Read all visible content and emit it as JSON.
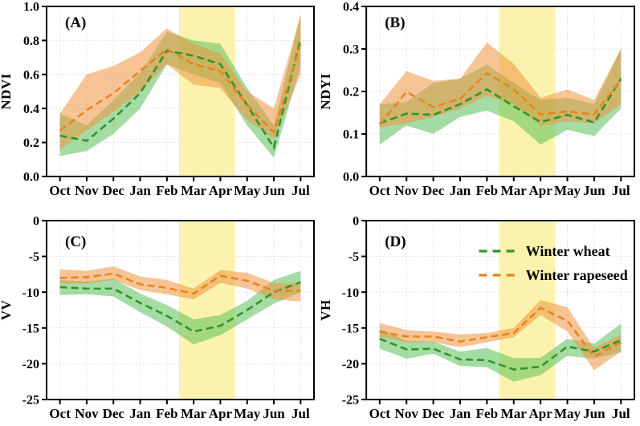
{
  "page": {
    "background": "#ffffff"
  },
  "styles": {
    "axis_color": "#000000",
    "grid_color": "#d9d9d9",
    "highlight_color": "#fbf2a4",
    "wheat_line_color": "#2e9628",
    "wheat_band_color": "#5bbf5b",
    "rapeseed_line_color": "#e8851f",
    "rapeseed_band_color": "#f09440"
  },
  "legend": {
    "position": "top-right-of-panel-D",
    "items": [
      {
        "label": "Winter wheat",
        "color": "#2e9628",
        "style": "dashed"
      },
      {
        "label": "Winter rapeseed",
        "color": "#e8851f",
        "style": "dashed"
      }
    ]
  },
  "months": [
    "Oct",
    "Nov",
    "Dec",
    "Jan",
    "Feb",
    "Mar",
    "Apr",
    "May",
    "Jun",
    "Jul"
  ],
  "chart_data": [
    {
      "type": "line",
      "panel_label": "(A)",
      "ylabel": "NDVI",
      "ylim": [
        0,
        1.0
      ],
      "yticks": [
        0,
        0.2,
        0.4,
        0.6,
        0.8,
        1.0
      ],
      "ytick_labels": [
        "0.0",
        "0.2",
        "0.4",
        "0.6",
        "0.8",
        "1.0"
      ],
      "categories": [
        "Oct",
        "Nov",
        "Dec",
        "Jan",
        "Feb",
        "Mar",
        "Apr",
        "May",
        "Jun",
        "Jul"
      ],
      "grid": true,
      "highlight_span_index": [
        4.45,
        6.55
      ],
      "legend_show": false,
      "series": [
        {
          "name": "Winter wheat",
          "color": "#2e9628",
          "band_color": "#5bbf5b",
          "values": [
            0.24,
            0.21,
            0.34,
            0.49,
            0.74,
            0.71,
            0.66,
            0.42,
            0.17,
            0.81
          ],
          "band_low": [
            0.12,
            0.15,
            0.25,
            0.4,
            0.66,
            0.6,
            0.55,
            0.3,
            0.11,
            0.65
          ],
          "band_high": [
            0.37,
            0.3,
            0.45,
            0.61,
            0.85,
            0.8,
            0.78,
            0.52,
            0.3,
            0.95
          ]
        },
        {
          "name": "Winter rapeseed",
          "color": "#e8851f",
          "band_color": "#f09440",
          "values": [
            0.27,
            0.39,
            0.49,
            0.62,
            0.75,
            0.66,
            0.62,
            0.42,
            0.26,
            0.78
          ],
          "band_low": [
            0.16,
            0.27,
            0.38,
            0.5,
            0.66,
            0.54,
            0.52,
            0.33,
            0.22,
            0.6
          ],
          "band_high": [
            0.37,
            0.6,
            0.65,
            0.73,
            0.87,
            0.78,
            0.72,
            0.5,
            0.4,
            0.95
          ]
        }
      ]
    },
    {
      "type": "line",
      "panel_label": "(B)",
      "ylabel": "NDYI",
      "ylim": [
        0,
        0.4
      ],
      "yticks": [
        0,
        0.1,
        0.2,
        0.3,
        0.4
      ],
      "ytick_labels": [
        "0.0",
        "0.1",
        "0.2",
        "0.3",
        "0.4"
      ],
      "categories": [
        "Oct",
        "Nov",
        "Dec",
        "Jan",
        "Feb",
        "Mar",
        "Apr",
        "May",
        "Jun",
        "Jul"
      ],
      "grid": true,
      "highlight_span_index": [
        4.45,
        6.55
      ],
      "legend_show": false,
      "series": [
        {
          "name": "Winter wheat",
          "color": "#2e9628",
          "band_color": "#5bbf5b",
          "values": [
            0.125,
            0.148,
            0.145,
            0.17,
            0.205,
            0.165,
            0.128,
            0.145,
            0.127,
            0.23
          ],
          "band_low": [
            0.075,
            0.12,
            0.1,
            0.14,
            0.155,
            0.13,
            0.075,
            0.11,
            0.095,
            0.16
          ],
          "band_high": [
            0.17,
            0.175,
            0.22,
            0.23,
            0.263,
            0.22,
            0.18,
            0.185,
            0.17,
            0.3
          ]
        },
        {
          "name": "Winter rapeseed",
          "color": "#e8851f",
          "band_color": "#f09440",
          "values": [
            0.122,
            0.199,
            0.163,
            0.183,
            0.243,
            0.205,
            0.146,
            0.153,
            0.146,
            0.228
          ],
          "band_low": [
            0.115,
            0.125,
            0.14,
            0.16,
            0.19,
            0.17,
            0.12,
            0.13,
            0.125,
            0.17
          ],
          "band_high": [
            0.17,
            0.248,
            0.225,
            0.23,
            0.315,
            0.265,
            0.185,
            0.205,
            0.18,
            0.3
          ]
        }
      ]
    },
    {
      "type": "line",
      "panel_label": "(C)",
      "ylabel": "VV",
      "ylim": [
        -25,
        0
      ],
      "yticks": [
        -25,
        -20,
        -15,
        -10,
        -5,
        0
      ],
      "ytick_labels": [
        "-25",
        "-20",
        "-15",
        "-10",
        "-5",
        "0"
      ],
      "categories": [
        "Oct",
        "Nov",
        "Dec",
        "Jan",
        "Feb",
        "Mar",
        "Apr",
        "May",
        "Jun",
        "Jul"
      ],
      "grid": true,
      "highlight_span_index": [
        4.45,
        6.55
      ],
      "legend_show": false,
      "series": [
        {
          "name": "Winter wheat",
          "color": "#2e9628",
          "band_color": "#5bbf5b",
          "values": [
            -9.3,
            -9.5,
            -9.5,
            -11.5,
            -13.3,
            -15.5,
            -14.7,
            -12.5,
            -10.0,
            -8.6
          ],
          "band_low": [
            -10.4,
            -10.3,
            -10.6,
            -12.8,
            -14.8,
            -17.3,
            -16.0,
            -13.8,
            -11.6,
            -10.0
          ],
          "band_high": [
            -8.3,
            -8.5,
            -8.1,
            -10.2,
            -11.8,
            -13.8,
            -13.2,
            -11.2,
            -8.3,
            -7.0
          ]
        },
        {
          "name": "Winter rapeseed",
          "color": "#e8851f",
          "band_color": "#f09440",
          "values": [
            -8.0,
            -7.9,
            -7.4,
            -8.9,
            -9.4,
            -10.2,
            -7.7,
            -8.4,
            -9.8,
            -9.8
          ],
          "band_low": [
            -8.8,
            -8.8,
            -8.3,
            -9.7,
            -10.3,
            -11.0,
            -8.7,
            -9.5,
            -11.0,
            -11.3
          ],
          "band_high": [
            -6.8,
            -7.0,
            -6.4,
            -7.8,
            -8.3,
            -9.5,
            -6.9,
            -7.3,
            -8.7,
            -8.7
          ]
        }
      ]
    },
    {
      "type": "line",
      "panel_label": "(D)",
      "ylabel": "VH",
      "ylim": [
        -25,
        0
      ],
      "yticks": [
        -25,
        -20,
        -15,
        -10,
        -5,
        0
      ],
      "ytick_labels": [
        "-25",
        "-20",
        "-15",
        "-10",
        "-5",
        "0"
      ],
      "categories": [
        "Oct",
        "Nov",
        "Dec",
        "Jan",
        "Feb",
        "Mar",
        "Apr",
        "May",
        "Jun",
        "Jul"
      ],
      "grid": true,
      "highlight_span_index": [
        4.45,
        6.55
      ],
      "legend_show": true,
      "series": [
        {
          "name": "Winter wheat",
          "color": "#2e9628",
          "band_color": "#5bbf5b",
          "values": [
            -16.5,
            -18.0,
            -17.9,
            -19.4,
            -19.5,
            -20.8,
            -20.4,
            -17.6,
            -18.3,
            -16.7
          ],
          "band_low": [
            -17.9,
            -19.3,
            -18.6,
            -20.3,
            -20.5,
            -22.5,
            -21.6,
            -18.9,
            -19.3,
            -18.4
          ],
          "band_high": [
            -15.1,
            -16.8,
            -16.9,
            -18.3,
            -17.8,
            -19.2,
            -19.2,
            -16.5,
            -17.2,
            -14.4
          ]
        },
        {
          "name": "Winter rapeseed",
          "color": "#e8851f",
          "band_color": "#f09440",
          "values": [
            -15.5,
            -16.2,
            -16.2,
            -16.9,
            -16.3,
            -15.7,
            -12.2,
            -14.0,
            -19.0,
            -17.0
          ],
          "band_low": [
            -16.2,
            -17.0,
            -17.0,
            -17.7,
            -17.0,
            -16.3,
            -13.2,
            -15.5,
            -20.9,
            -18.3
          ],
          "band_high": [
            -14.3,
            -15.3,
            -15.5,
            -15.9,
            -15.7,
            -15.0,
            -11.1,
            -12.1,
            -17.8,
            -15.9
          ]
        }
      ]
    }
  ]
}
